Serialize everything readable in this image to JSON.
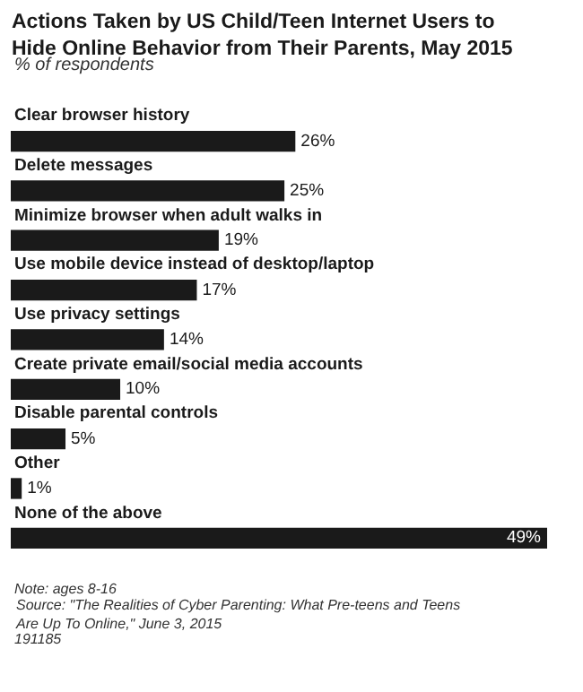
{
  "chart_data": {
    "type": "bar",
    "orientation": "horizontal",
    "title": "Actions Taken by US Child/Teen Internet Users to Hide Online Behavior from Their Parents, May 2015",
    "subtitle": "% of respondents",
    "categories": [
      "Clear browser history",
      "Delete messages",
      "Minimize browser when adult walks in",
      "Use mobile device instead of desktop/laptop",
      "Use privacy settings",
      "Create private email/social media accounts",
      "Disable parental controls",
      "Other",
      "None of the above"
    ],
    "values": [
      26,
      25,
      19,
      17,
      14,
      10,
      5,
      1,
      49
    ],
    "value_labels": [
      "26%",
      "25%",
      "19%",
      "17%",
      "14%",
      "10%",
      "5%",
      "1%",
      "49%"
    ],
    "color": "#1a1a1a",
    "xlim": [
      0,
      49
    ],
    "grid": false,
    "legend": false,
    "annotations": [
      "Note: ages 8-16",
      "Source: \"The Realities of Cyber Parenting: What Pre-teens and Teens Are Up To Online,\" June 3, 2015",
      "191185"
    ]
  }
}
